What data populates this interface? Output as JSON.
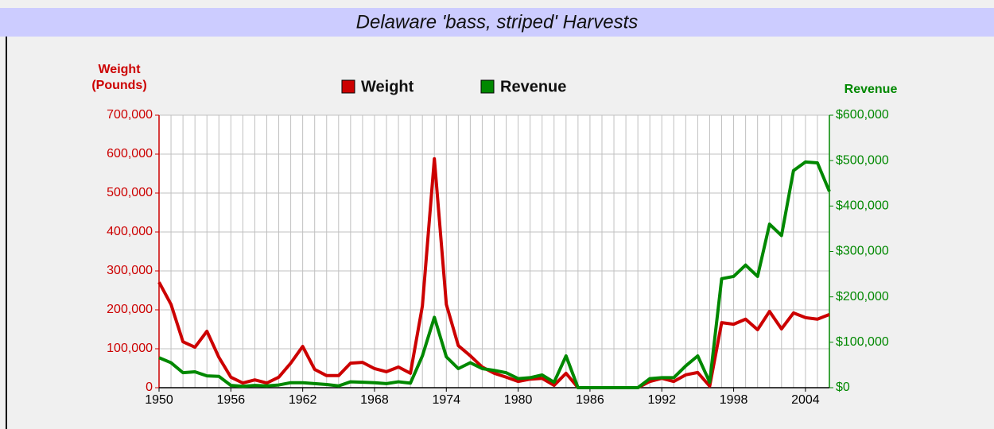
{
  "chart_data": {
    "type": "line",
    "title": "Delaware 'bass, striped' Harvests",
    "y_label": "Weight (Pounds)",
    "y2_label": "Revenue",
    "x": [
      1950,
      1951,
      1952,
      1953,
      1954,
      1955,
      1956,
      1957,
      1958,
      1959,
      1960,
      1961,
      1962,
      1963,
      1964,
      1965,
      1966,
      1967,
      1968,
      1969,
      1970,
      1971,
      1972,
      1973,
      1974,
      1975,
      1976,
      1977,
      1978,
      1979,
      1980,
      1981,
      1982,
      1983,
      1984,
      1985,
      1986,
      1987,
      1988,
      1989,
      1990,
      1991,
      1992,
      1993,
      1994,
      1995,
      1996,
      1997,
      1998,
      1999,
      2000,
      2001,
      2002,
      2003,
      2004,
      2005,
      2006
    ],
    "xlim": [
      1950,
      2006
    ],
    "xticks": [
      1950,
      1956,
      1962,
      1968,
      1974,
      1980,
      1986,
      1992,
      1998,
      2004
    ],
    "ylim": [
      0,
      700000
    ],
    "yticks": [
      0,
      {
        "value": 100000,
        "label": "100,000"
      },
      {
        "value": 200000,
        "label": "200,000"
      },
      {
        "value": 300000,
        "label": "300,000"
      },
      {
        "value": 400000,
        "label": "400,000"
      },
      {
        "value": 500000,
        "label": "500,000"
      },
      {
        "value": 600000,
        "label": "600,000"
      },
      {
        "value": 700000,
        "label": "700,000"
      }
    ],
    "y2lim": [
      0,
      600000
    ],
    "y2ticks": [
      {
        "value": 0,
        "label": "$0"
      },
      {
        "value": 100000,
        "label": "$100,000"
      },
      {
        "value": 200000,
        "label": "$200,000"
      },
      {
        "value": 300000,
        "label": "$300,000"
      },
      {
        "value": 400000,
        "label": "$400,000"
      },
      {
        "value": 500000,
        "label": "$500,000"
      },
      {
        "value": 600000,
        "label": "$600,000"
      }
    ],
    "grid": true,
    "legend": "top",
    "series": [
      {
        "name": "Weight",
        "color": "#cc0000",
        "values": [
          271000,
          214000,
          118000,
          104000,
          145000,
          78000,
          27000,
          12000,
          20000,
          12000,
          27000,
          63000,
          106000,
          47000,
          31000,
          31000,
          63000,
          65000,
          49000,
          41000,
          53000,
          37000,
          210000,
          588000,
          214000,
          108000,
          82000,
          53000,
          37000,
          27000,
          16000,
          22000,
          24000,
          6000,
          37000,
          0,
          0,
          0,
          0,
          0,
          0,
          16000,
          24000,
          16000,
          33000,
          39000,
          4000,
          167000,
          163000,
          176000,
          149000,
          196000,
          151000,
          192000,
          180000,
          176000,
          188000
        ]
      },
      {
        "name": "Revenue",
        "color": "#008800",
        "axis": "y2",
        "values": [
          66000,
          55000,
          33000,
          35000,
          26000,
          25000,
          5000,
          3000,
          5000,
          4000,
          6000,
          11000,
          11000,
          9000,
          7000,
          4000,
          13000,
          12000,
          11000,
          9000,
          13000,
          10000,
          70000,
          155000,
          68000,
          42000,
          55000,
          42000,
          38000,
          33000,
          20000,
          22000,
          28000,
          12000,
          70000,
          0,
          0,
          0,
          0,
          0,
          0,
          20000,
          22000,
          22000,
          48000,
          70000,
          12000,
          240000,
          245000,
          270000,
          245000,
          360000,
          335000,
          478000,
          497000,
          495000,
          432000
        ]
      }
    ]
  }
}
